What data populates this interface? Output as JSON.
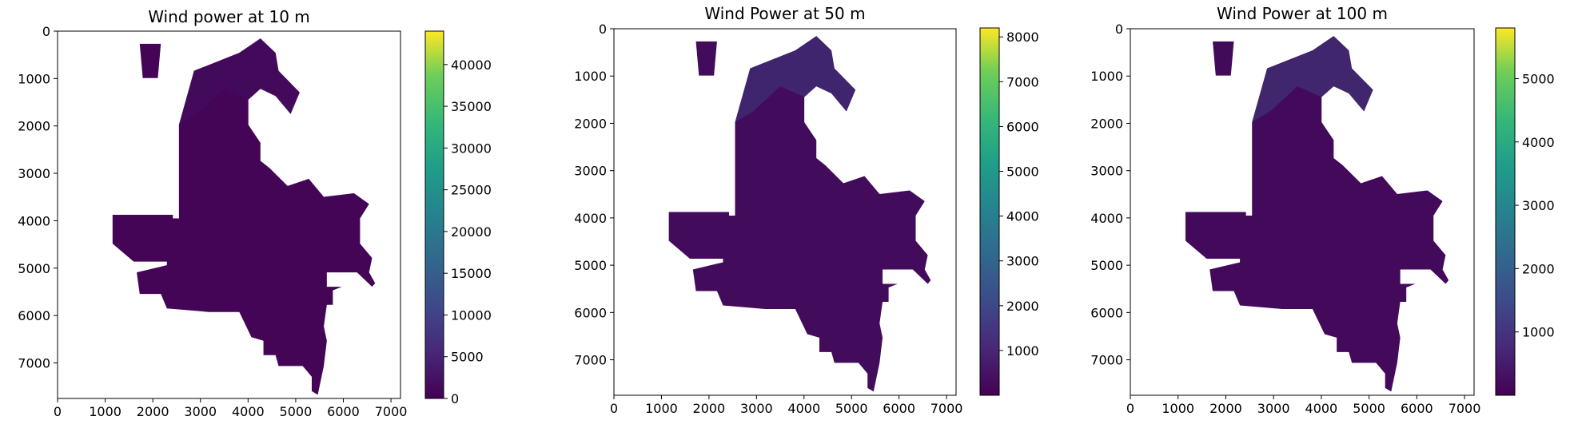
{
  "chart_data": [
    {
      "type": "heatmap",
      "title": "Wind power at 10 m",
      "xlim": [
        0,
        7200
      ],
      "ylim": [
        7750,
        0
      ],
      "x_ticks": [
        0,
        1000,
        2000,
        3000,
        4000,
        5000,
        6000,
        7000
      ],
      "y_ticks": [
        0,
        1000,
        2000,
        3000,
        4000,
        5000,
        6000,
        7000
      ],
      "colorbar_range": [
        0,
        44000
      ],
      "colorbar_ticks": [
        0,
        5000,
        10000,
        15000,
        20000,
        25000,
        30000,
        35000,
        40000
      ],
      "colormap": "viridis",
      "typical_value": 500,
      "high_value": 1500
    },
    {
      "type": "heatmap",
      "title": "Wind Power at 50 m",
      "xlim": [
        0,
        7200
      ],
      "ylim": [
        7750,
        0
      ],
      "x_ticks": [
        0,
        1000,
        2000,
        3000,
        4000,
        5000,
        6000,
        7000
      ],
      "y_ticks": [
        0,
        1000,
        2000,
        3000,
        4000,
        5000,
        6000,
        7000
      ],
      "colorbar_range": [
        0,
        8200
      ],
      "colorbar_ticks": [
        1000,
        2000,
        3000,
        4000,
        5000,
        6000,
        7000,
        8000
      ],
      "colormap": "viridis",
      "typical_value": 250,
      "high_value": 1500
    },
    {
      "type": "heatmap",
      "title": "Wind Power at 100 m",
      "xlim": [
        0,
        7200
      ],
      "ylim": [
        7750,
        0
      ],
      "x_ticks": [
        0,
        1000,
        2000,
        3000,
        4000,
        5000,
        6000,
        7000
      ],
      "y_ticks": [
        0,
        1000,
        2000,
        3000,
        4000,
        5000,
        6000,
        7000
      ],
      "colorbar_range": [
        0,
        5800
      ],
      "colorbar_ticks": [
        1000,
        2000,
        3000,
        4000,
        5000
      ],
      "colormap": "viridis",
      "typical_value": 150,
      "high_value": 1100
    }
  ],
  "colors": {
    "viridis_low": "#440154",
    "viridis_2": "#3b528b",
    "viridis_mid": "#21918c",
    "viridis_4": "#5ec962",
    "viridis_high": "#fde725"
  }
}
